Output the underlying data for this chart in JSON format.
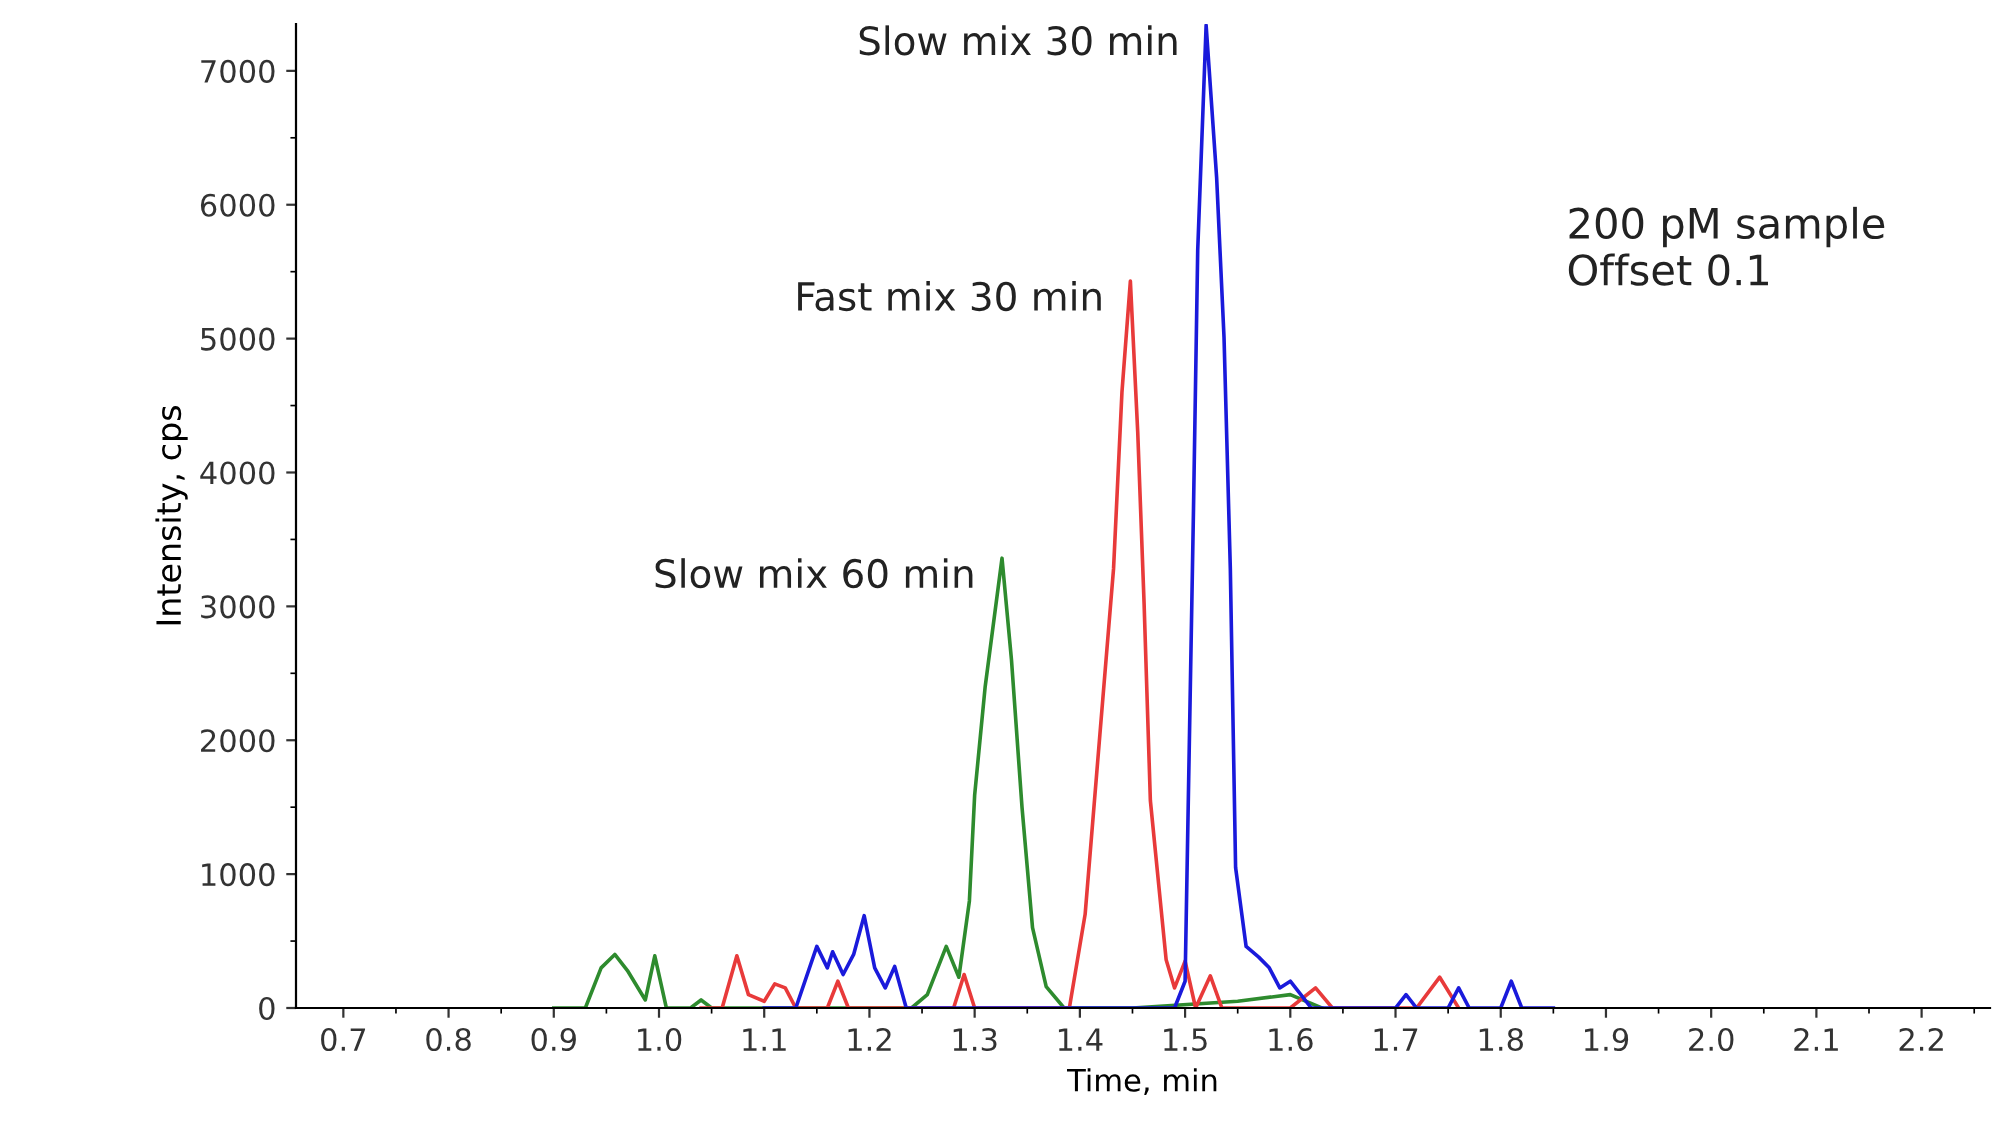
{
  "chart_data": {
    "type": "line",
    "xlabel": "Time, min",
    "ylabel": "Intensity, cps",
    "xlim": [
      0.655,
      2.265
    ],
    "xticks": [
      0.7,
      0.8,
      0.9,
      {
        "value": 1,
        "label": "1.0"
      },
      1.1,
      1.2,
      1.3,
      1.4,
      1.5,
      1.6,
      1.7,
      1.8,
      1.9,
      {
        "value": 2,
        "label": "2.0"
      },
      2.1,
      2.2
    ],
    "ylim": [
      0,
      7350
    ],
    "yticks": [
      0,
      1000,
      2000,
      3000,
      4000,
      5000,
      6000,
      7000
    ],
    "grid": false,
    "legend": false,
    "marker": "none",
    "line_style": "solid",
    "annotations": [
      "200 pM sample\nOffset 0.1"
    ],
    "series": [
      {
        "name": "Slow mix 60 min",
        "color": "#2e8b2e",
        "x": [
          0.9,
          0.93,
          0.945,
          0.958,
          0.97,
          0.987,
          0.996,
          1.007,
          1.03,
          1.04,
          1.05,
          1.1,
          1.2,
          1.24,
          1.255,
          1.273,
          1.285,
          1.295,
          1.3,
          1.31,
          1.326,
          1.335,
          1.345,
          1.355,
          1.368,
          1.385,
          1.45,
          1.55,
          1.6,
          1.63
        ],
        "values": [
          0,
          0,
          300,
          400,
          280,
          60,
          390,
          0,
          0,
          60,
          0,
          0,
          0,
          0,
          100,
          460,
          230,
          800,
          1590,
          2400,
          3360,
          2600,
          1500,
          600,
          160,
          0,
          0,
          50,
          100,
          0
        ]
      },
      {
        "name": "Fast mix 30 min",
        "color": "#e83a3a",
        "x": [
          1.04,
          1.06,
          1.074,
          1.085,
          1.1,
          1.11,
          1.12,
          1.13,
          1.16,
          1.17,
          1.18,
          1.27,
          1.28,
          1.29,
          1.3,
          1.35,
          1.39,
          1.405,
          1.419,
          1.432,
          1.44,
          1.448,
          1.455,
          1.461,
          1.467,
          1.482,
          1.49,
          1.5,
          1.51,
          1.524,
          1.535,
          1.6,
          1.624,
          1.64,
          1.7,
          1.72,
          1.742,
          1.76
        ],
        "values": [
          0,
          0,
          390,
          100,
          50,
          180,
          150,
          0,
          0,
          200,
          0,
          0,
          0,
          250,
          0,
          0,
          0,
          700,
          2040,
          3280,
          4600,
          5430,
          4300,
          3030,
          1550,
          360,
          150,
          350,
          0,
          240,
          0,
          0,
          150,
          0,
          0,
          0,
          230,
          0
        ]
      },
      {
        "name": "Slow mix 30 min",
        "color": "#1a1adb",
        "x": [
          1.1,
          1.13,
          1.15,
          1.16,
          1.165,
          1.175,
          1.185,
          1.195,
          1.205,
          1.215,
          1.224,
          1.235,
          1.3,
          1.4,
          1.49,
          1.5,
          1.508,
          1.512,
          1.52,
          1.53,
          1.537,
          1.543,
          1.548,
          1.558,
          1.57,
          1.58,
          1.59,
          1.6,
          1.62,
          1.7,
          1.71,
          1.72,
          1.75,
          1.76,
          1.77,
          1.8,
          1.81,
          1.82,
          1.85
        ],
        "values": [
          0,
          0,
          460,
          300,
          420,
          250,
          400,
          690,
          300,
          150,
          310,
          0,
          0,
          0,
          0,
          200,
          3730,
          5660,
          7340,
          6200,
          5010,
          3280,
          1050,
          460,
          380,
          300,
          150,
          200,
          0,
          0,
          100,
          0,
          0,
          150,
          0,
          0,
          200,
          0,
          0
        ]
      }
    ]
  }
}
